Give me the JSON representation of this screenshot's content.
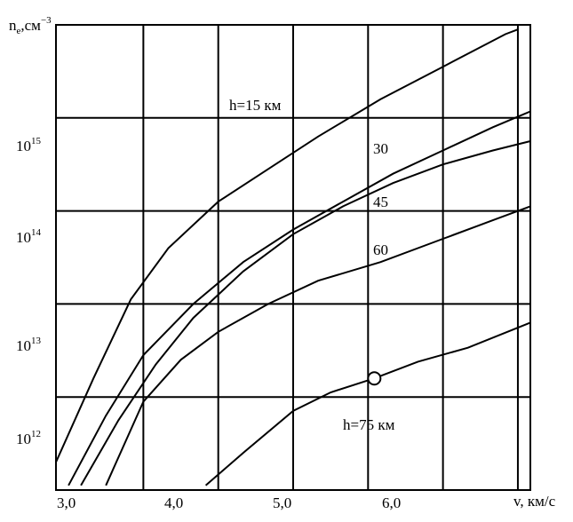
{
  "chart_data": {
    "type": "line",
    "ylabel": {
      "base": "n",
      "sub": "e",
      "rest": ",см",
      "sup": "−3"
    },
    "xlabel": "v, км/с",
    "xlim": [
      2.9,
      6.7
    ],
    "ylim": [
      11.55,
      16.55
    ],
    "y_scale": "log",
    "x_ticks": [
      {
        "value": 3.0,
        "label": "3,0"
      },
      {
        "value": 4.0,
        "label": "4,0"
      },
      {
        "value": 5.0,
        "label": "5,0"
      },
      {
        "value": 6.0,
        "label": "6,0"
      }
    ],
    "y_ticks": [
      {
        "exp": 12,
        "base": "10",
        "sup": "12"
      },
      {
        "exp": 13,
        "base": "10",
        "sup": "13"
      },
      {
        "exp": 14,
        "base": "10",
        "sup": "14"
      },
      {
        "exp": 15,
        "base": "10",
        "sup": "15"
      }
    ],
    "grid": true,
    "series": [
      {
        "label": "h=15 км",
        "points": [
          [
            2.9,
            11.85
          ],
          [
            3.2,
            12.75
          ],
          [
            3.5,
            13.6
          ],
          [
            3.8,
            14.15
          ],
          [
            4.2,
            14.65
          ],
          [
            4.6,
            15.0
          ],
          [
            5.0,
            15.35
          ],
          [
            5.5,
            15.75
          ],
          [
            6.0,
            16.1
          ],
          [
            6.5,
            16.45
          ],
          [
            6.6,
            16.5
          ]
        ]
      },
      {
        "label": "30",
        "points": [
          [
            3.0,
            11.6
          ],
          [
            3.3,
            12.35
          ],
          [
            3.6,
            13.0
          ],
          [
            4.0,
            13.55
          ],
          [
            4.4,
            14.0
          ],
          [
            4.8,
            14.35
          ],
          [
            5.2,
            14.65
          ],
          [
            5.6,
            14.95
          ],
          [
            6.0,
            15.2
          ],
          [
            6.4,
            15.45
          ],
          [
            6.7,
            15.62
          ]
        ]
      },
      {
        "label": "45",
        "points": [
          [
            3.1,
            11.6
          ],
          [
            3.4,
            12.3
          ],
          [
            3.7,
            12.9
          ],
          [
            4.0,
            13.4
          ],
          [
            4.4,
            13.9
          ],
          [
            4.8,
            14.3
          ],
          [
            5.2,
            14.6
          ],
          [
            5.6,
            14.85
          ],
          [
            6.0,
            15.05
          ],
          [
            6.4,
            15.2
          ],
          [
            6.7,
            15.3
          ]
        ]
      },
      {
        "label": "60",
        "points": [
          [
            3.3,
            11.6
          ],
          [
            3.6,
            12.5
          ],
          [
            3.9,
            12.95
          ],
          [
            4.2,
            13.25
          ],
          [
            4.6,
            13.55
          ],
          [
            5.0,
            13.8
          ],
          [
            5.5,
            14.0
          ],
          [
            6.0,
            14.25
          ],
          [
            6.4,
            14.45
          ],
          [
            6.7,
            14.6
          ]
        ]
      },
      {
        "label": "h=75 км",
        "points": [
          [
            4.1,
            11.6
          ],
          [
            4.4,
            11.95
          ],
          [
            4.8,
            12.4
          ],
          [
            5.1,
            12.6
          ],
          [
            5.45,
            12.75
          ],
          [
            5.8,
            12.93
          ],
          [
            6.2,
            13.08
          ],
          [
            6.7,
            13.35
          ]
        ]
      }
    ],
    "marker": {
      "x": 5.45,
      "y": 12.75
    }
  }
}
